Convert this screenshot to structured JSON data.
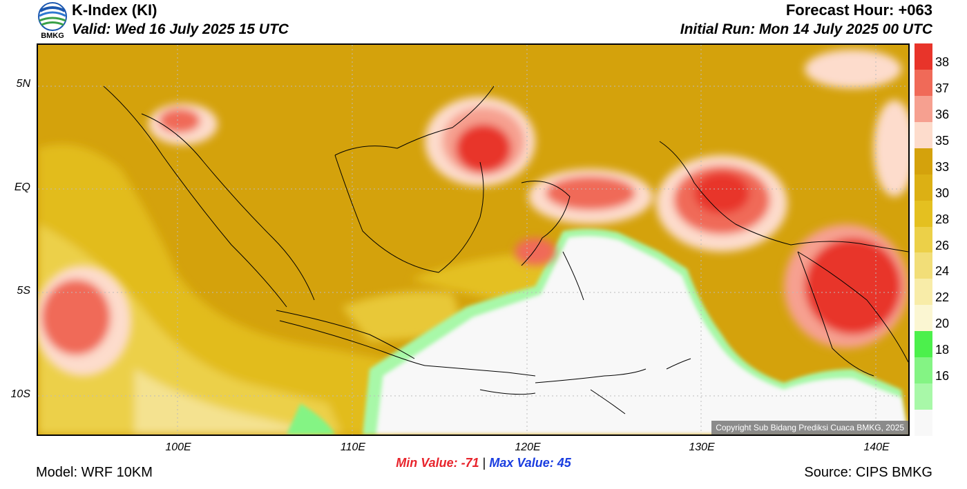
{
  "header": {
    "title": "K-Index (KI)",
    "valid": "Valid: Wed 16 July 2025 15 UTC",
    "forecast_hour": "Forecast Hour: +063",
    "initial_run": "Initial Run: Mon 14 July 2025 00 UTC",
    "logo_text": "BMKG"
  },
  "map": {
    "lat_labels": [
      "5N",
      "EQ",
      "5S",
      "10S"
    ],
    "lon_labels": [
      "100E",
      "110E",
      "120E",
      "130E",
      "140E"
    ],
    "copyright": "Copyright Sub Bidang Prediksi Cuaca BMKG, 2025"
  },
  "colorbar": {
    "levels": [
      {
        "label": "38",
        "color": "#e8342a"
      },
      {
        "label": "37",
        "color": "#f06a58"
      },
      {
        "label": "36",
        "color": "#f6a090"
      },
      {
        "label": "35",
        "color": "#fddccc"
      },
      {
        "label": "33",
        "color": "#d4a20c"
      },
      {
        "label": "30",
        "color": "#dcb014"
      },
      {
        "label": "28",
        "color": "#e4c020"
      },
      {
        "label": "26",
        "color": "#ecd048"
      },
      {
        "label": "24",
        "color": "#f2de78"
      },
      {
        "label": "22",
        "color": "#f8eca8"
      },
      {
        "label": "20",
        "color": "#fbf6d2"
      },
      {
        "label": "18",
        "color": "#4cf04c"
      },
      {
        "label": "16",
        "color": "#84f484"
      },
      {
        "label": "",
        "color": "#a8f8a8"
      },
      {
        "label": "",
        "color": "#f8f8f8"
      }
    ]
  },
  "stats": {
    "min_label": "Min Value: -71",
    "separator": "|",
    "max_label": "Max Value:  45"
  },
  "footer": {
    "model": "Model: WRF 10KM",
    "source": "Source: CIPS BMKG"
  }
}
